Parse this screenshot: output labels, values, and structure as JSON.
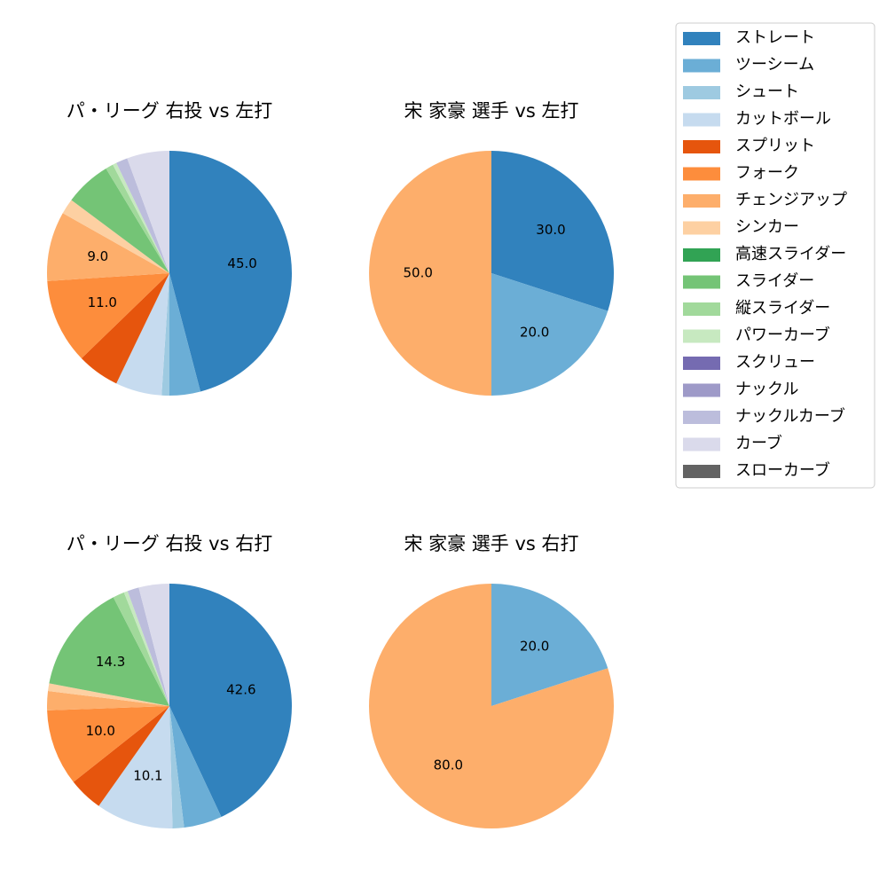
{
  "legend": {
    "items": [
      {
        "label": "ストレート",
        "color": "#3182bd"
      },
      {
        "label": "ツーシーム",
        "color": "#6baed6"
      },
      {
        "label": "シュート",
        "color": "#9ecae1"
      },
      {
        "label": "カットボール",
        "color": "#c6dbef"
      },
      {
        "label": "スプリット",
        "color": "#e6550d"
      },
      {
        "label": "フォーク",
        "color": "#fd8d3c"
      },
      {
        "label": "チェンジアップ",
        "color": "#fdae6b"
      },
      {
        "label": "シンカー",
        "color": "#fdd0a2"
      },
      {
        "label": "高速スライダー",
        "color": "#31a354"
      },
      {
        "label": "スライダー",
        "color": "#74c476"
      },
      {
        "label": "縦スライダー",
        "color": "#a1d99b"
      },
      {
        "label": "パワーカーブ",
        "color": "#c7e9c0"
      },
      {
        "label": "スクリュー",
        "color": "#756bb1"
      },
      {
        "label": "ナックル",
        "color": "#9e9ac8"
      },
      {
        "label": "ナックルカーブ",
        "color": "#bcbddc"
      },
      {
        "label": "カーブ",
        "color": "#dadaeb"
      },
      {
        "label": "スローカーブ",
        "color": "#636363"
      }
    ]
  },
  "chart_data": [
    {
      "type": "pie",
      "title": "パ・リーグ 右投 vs 左打",
      "slices": [
        {
          "label": "ストレート",
          "value": 45.0,
          "shown": "45.0"
        },
        {
          "label": "ツーシーム",
          "value": 4.0
        },
        {
          "label": "シュート",
          "value": 1.0
        },
        {
          "label": "カットボール",
          "value": 6.0
        },
        {
          "label": "スプリット",
          "value": 5.5
        },
        {
          "label": "フォーク",
          "value": 11.0,
          "shown": "11.0"
        },
        {
          "label": "チェンジアップ",
          "value": 9.0,
          "shown": "9.0"
        },
        {
          "label": "シンカー",
          "value": 2.0
        },
        {
          "label": "スライダー",
          "value": 6.0
        },
        {
          "label": "縦スライダー",
          "value": 1.0
        },
        {
          "label": "パワーカーブ",
          "value": 0.5
        },
        {
          "label": "ナックルカーブ",
          "value": 1.5
        },
        {
          "label": "カーブ",
          "value": 5.5
        }
      ]
    },
    {
      "type": "pie",
      "title": "宋 家豪 選手 vs 左打",
      "slices": [
        {
          "label": "ストレート",
          "value": 30.0,
          "shown": "30.0"
        },
        {
          "label": "ツーシーム",
          "value": 20.0,
          "shown": "20.0"
        },
        {
          "label": "チェンジアップ",
          "value": 50.0,
          "shown": "50.0"
        }
      ]
    },
    {
      "type": "pie",
      "title": "パ・リーグ 右投 vs 右打",
      "slices": [
        {
          "label": "ストレート",
          "value": 42.6,
          "shown": "42.6"
        },
        {
          "label": "ツーシーム",
          "value": 5.0
        },
        {
          "label": "シュート",
          "value": 1.5
        },
        {
          "label": "カットボール",
          "value": 10.1,
          "shown": "10.1"
        },
        {
          "label": "スプリット",
          "value": 4.5
        },
        {
          "label": "フォーク",
          "value": 10.0,
          "shown": "10.0"
        },
        {
          "label": "チェンジアップ",
          "value": 2.5
        },
        {
          "label": "シンカー",
          "value": 1.0
        },
        {
          "label": "スライダー",
          "value": 14.3,
          "shown": "14.3"
        },
        {
          "label": "縦スライダー",
          "value": 1.5
        },
        {
          "label": "パワーカーブ",
          "value": 0.5
        },
        {
          "label": "ナックルカーブ",
          "value": 1.5
        },
        {
          "label": "カーブ",
          "value": 4.0
        }
      ]
    },
    {
      "type": "pie",
      "title": "宋 家豪 選手 vs 右打",
      "slices": [
        {
          "label": "ツーシーム",
          "value": 20.0,
          "shown": "20.0"
        },
        {
          "label": "チェンジアップ",
          "value": 80.0,
          "shown": "80.0"
        }
      ]
    }
  ]
}
